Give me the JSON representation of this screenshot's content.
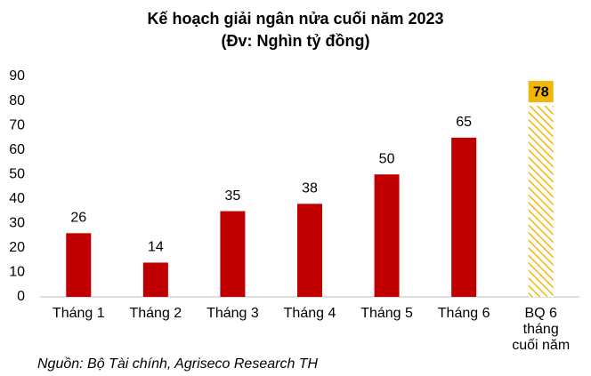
{
  "chart_data": {
    "type": "bar",
    "title": "Kế hoạch giải ngân nửa cuối năm 2023",
    "subtitle": "(Đv: Nghìn tỷ đồng)",
    "categories": [
      "Tháng 1",
      "Tháng 2",
      "Tháng 3",
      "Tháng 4",
      "Tháng 5",
      "Tháng 6",
      "BQ 6 tháng cuối năm"
    ],
    "values": [
      26,
      14,
      35,
      38,
      50,
      65,
      78
    ],
    "colors": [
      "#c00000",
      "#c00000",
      "#c00000",
      "#c00000",
      "#c00000",
      "#c00000",
      "#f2b705"
    ],
    "hatched": [
      false,
      false,
      false,
      false,
      false,
      false,
      true
    ],
    "ylim": [
      0,
      90
    ],
    "yticks": [
      0,
      10,
      20,
      30,
      40,
      50,
      60,
      70,
      80,
      90
    ],
    "grid": false,
    "source": "Nguồn: Bộ Tài chính, Agriseco Research TH"
  }
}
